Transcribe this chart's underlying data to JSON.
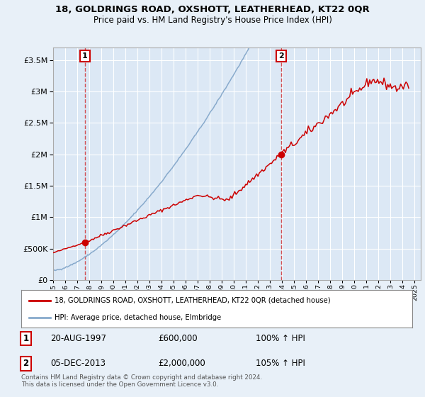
{
  "title": "18, GOLDRINGS ROAD, OXSHOTT, LEATHERHEAD, KT22 0QR",
  "subtitle": "Price paid vs. HM Land Registry's House Price Index (HPI)",
  "red_label": "18, GOLDRINGS ROAD, OXSHOTT, LEATHERHEAD, KT22 0QR (detached house)",
  "blue_label": "HPI: Average price, detached house, Elmbridge",
  "annotation1_label": "1",
  "annotation1_date": "20-AUG-1997",
  "annotation1_price": "£600,000",
  "annotation1_hpi": "100% ↑ HPI",
  "annotation2_label": "2",
  "annotation2_date": "05-DEC-2013",
  "annotation2_price": "£2,000,000",
  "annotation2_hpi": "105% ↑ HPI",
  "footer": "Contains HM Land Registry data © Crown copyright and database right 2024.\nThis data is licensed under the Open Government Licence v3.0.",
  "sale1_x": 1997.64,
  "sale1_y": 600000,
  "sale2_x": 2013.92,
  "sale2_y": 2000000,
  "xlim": [
    1995.0,
    2025.5
  ],
  "ylim": [
    0,
    3700000
  ],
  "background_color": "#e8f0f8",
  "plot_bg_color": "#dce8f5",
  "grid_color": "#ffffff",
  "red_color": "#cc0000",
  "blue_color": "#88aacc",
  "title_fontsize": 9.5,
  "subtitle_fontsize": 8.5
}
